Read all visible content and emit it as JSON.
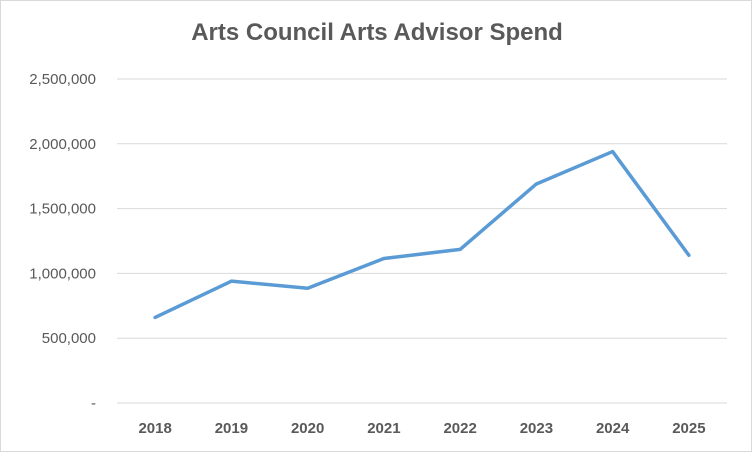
{
  "chart_data": {
    "type": "line",
    "title": "Arts Council Arts Advisor Spend",
    "xlabel": "",
    "ylabel": "",
    "categories": [
      "2018",
      "2019",
      "2020",
      "2021",
      "2022",
      "2023",
      "2024",
      "2025"
    ],
    "series": [
      {
        "values": [
          660000,
          940000,
          885000,
          1115000,
          1185000,
          1690000,
          1940000,
          1140000
        ]
      }
    ],
    "ylim": [
      0,
      2500000
    ],
    "yticks": [
      0,
      500000,
      1000000,
      1500000,
      2000000,
      2500000
    ],
    "ytick_labels": [
      "-",
      "500,000",
      "1,000,000",
      "1,500,000",
      "2,000,000",
      "2,500,000"
    ],
    "grid": true,
    "legend": "none",
    "line_color": "#5b9bd5",
    "grid_color": "#d9d9d9",
    "text_color": "#595959"
  }
}
